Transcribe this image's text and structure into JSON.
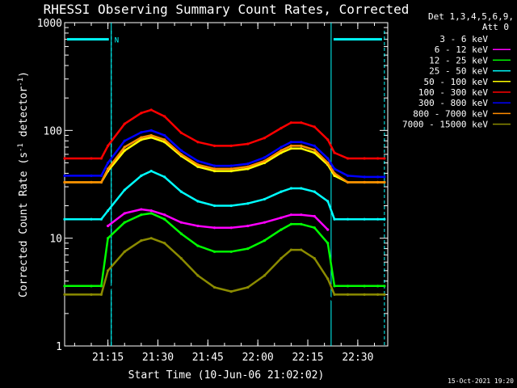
{
  "chart_data": {
    "type": "line",
    "title": "RHESSI Observing Summary Count Rates, Corrected",
    "xlabel": "Start Time (10-Jun-06 21:02:02)",
    "ylabel": "Corrected Count Rate (s⁻¹ detector⁻¹)",
    "ylabel_main": "Corrected Count Rate (s",
    "ylabel_sup1": "-1",
    "ylabel_mid": " detector",
    "ylabel_sup2": "-1",
    "ylabel_end": ")",
    "yscale": "log",
    "ylim": [
      1,
      1000
    ],
    "xlim": [
      "21:02",
      "22:39"
    ],
    "x_ticks": [
      "21:15",
      "21:30",
      "21:45",
      "22:00",
      "22:15",
      "22:30"
    ],
    "y_ticks": [
      "1",
      "10",
      "100",
      "1000"
    ],
    "legend_header": [
      "Det 1,3,4,5,6,9,",
      "Att 0"
    ],
    "legend_placement": "right",
    "footer_date": "15-Oct-2021 19:20",
    "annotation": "N",
    "time_points": [
      "21:02",
      "21:10",
      "21:13",
      "21:15",
      "21:20",
      "21:25",
      "21:28",
      "21:32",
      "21:37",
      "21:42",
      "21:47",
      "21:52",
      "21:57",
      "22:02",
      "22:07",
      "22:10",
      "22:13",
      "22:17",
      "22:21",
      "22:23",
      "22:27",
      "22:32",
      "22:36",
      "22:38"
    ],
    "series": [
      {
        "name": "3 - 6 keV",
        "color": "#000000",
        "values": [
          null,
          null,
          null,
          3.2,
          5,
          7.5,
          8.5,
          7,
          4.5,
          3,
          2.7,
          2.6,
          2.7,
          3,
          5,
          7,
          7.2,
          5.5,
          3,
          2.5,
          2.2,
          2.2,
          null,
          null
        ]
      },
      {
        "name": "6 - 12 keV",
        "color": "#ff00ff",
        "values": [
          null,
          null,
          null,
          13,
          17,
          18.5,
          18,
          16.5,
          14,
          13,
          12.5,
          12.5,
          13,
          14,
          15.5,
          16.5,
          16.5,
          16,
          12,
          null,
          null,
          null,
          null,
          null
        ]
      },
      {
        "name": "12 - 25 keV",
        "color": "#00ff00",
        "values": [
          3.6,
          3.6,
          3.6,
          10,
          14,
          16.5,
          17,
          15,
          11,
          8.5,
          7.5,
          7.5,
          8,
          9.5,
          12,
          13.5,
          13.5,
          12.5,
          9,
          3.6,
          3.6,
          3.6,
          3.6,
          3.6
        ]
      },
      {
        "name": "25 - 50 keV",
        "color": "#00ffff",
        "values": [
          15,
          15,
          15,
          18,
          28,
          38,
          42,
          37,
          27,
          22,
          20,
          20,
          21,
          23,
          27,
          29,
          29,
          27,
          22,
          15,
          15,
          15,
          15,
          15
        ]
      },
      {
        "name": "50 - 100 keV",
        "color": "#ffff00",
        "values": [
          33,
          33,
          33,
          42,
          65,
          82,
          86,
          78,
          58,
          46,
          42,
          42,
          44,
          50,
          62,
          68,
          68,
          62,
          48,
          38,
          33,
          33,
          33,
          33
        ]
      },
      {
        "name": "100 - 300 keV",
        "color": "#ff0000",
        "values": [
          55,
          55,
          55,
          72,
          115,
          145,
          155,
          135,
          95,
          78,
          72,
          72,
          75,
          85,
          105,
          118,
          118,
          108,
          82,
          62,
          55,
          55,
          55,
          55
        ]
      },
      {
        "name": "300 - 800 keV",
        "color": "#0000ff",
        "values": [
          38,
          38,
          38,
          50,
          80,
          96,
          100,
          90,
          65,
          52,
          47,
          47,
          49,
          56,
          70,
          78,
          78,
          72,
          55,
          44,
          38,
          37,
          37,
          37
        ]
      },
      {
        "name": "800 - 7000 keV",
        "color": "#ff8c00",
        "values": [
          33,
          33,
          33,
          44,
          70,
          86,
          90,
          82,
          60,
          48,
          44,
          44,
          46,
          52,
          65,
          72,
          72,
          66,
          50,
          40,
          33,
          33,
          33,
          33
        ]
      },
      {
        "name": "7000 - 15000 keV",
        "color": "#8b8b00",
        "values": [
          3,
          3,
          3,
          5,
          7.5,
          9.5,
          10,
          9,
          6.5,
          4.5,
          3.5,
          3.2,
          3.5,
          4.5,
          6.5,
          7.8,
          7.8,
          6.5,
          4.2,
          3,
          3,
          3,
          3,
          3
        ]
      }
    ],
    "periods": [
      {
        "label": "N",
        "start": "21:02",
        "end": "21:16"
      },
      {
        "label": "",
        "start": "22:22",
        "end": "22:38"
      }
    ],
    "markers": [
      "21:16",
      "22:22"
    ],
    "grid": false
  }
}
